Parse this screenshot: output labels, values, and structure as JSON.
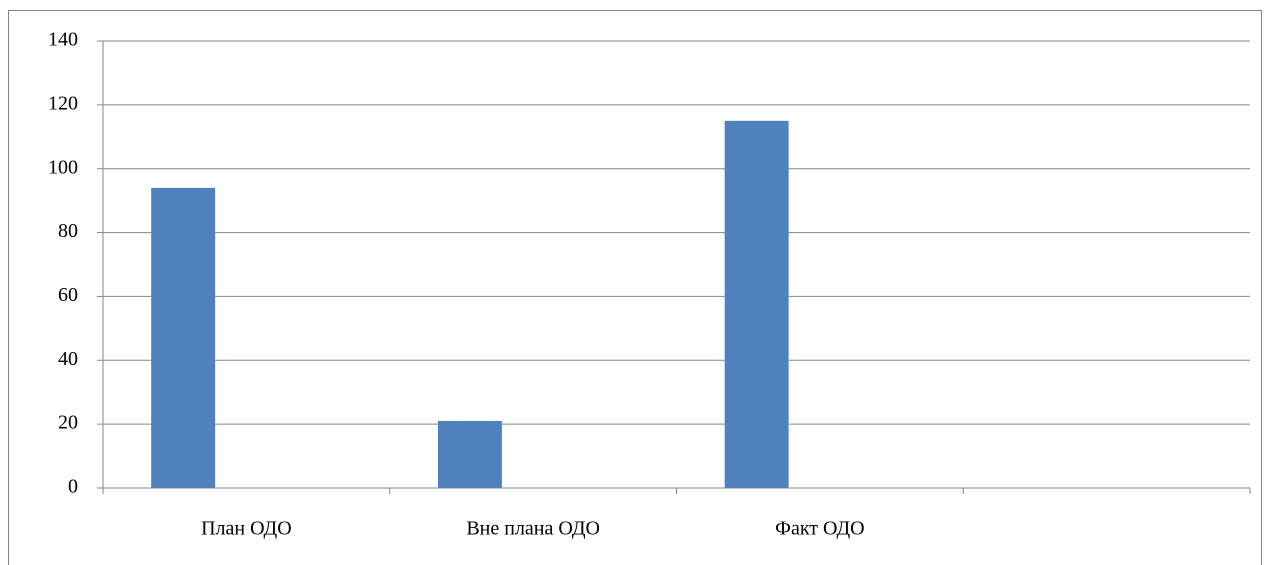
{
  "chart_data": {
    "type": "bar",
    "categories": [
      "План ОДО",
      "Вне плана ОДО",
      "Факт ОДО",
      null
    ],
    "values": [
      94,
      21,
      115,
      null
    ],
    "color": "#4f81bd",
    "ylim": [
      0,
      140
    ],
    "yticks": [
      0,
      20,
      40,
      60,
      80,
      100,
      120,
      140
    ],
    "grid": true
  }
}
